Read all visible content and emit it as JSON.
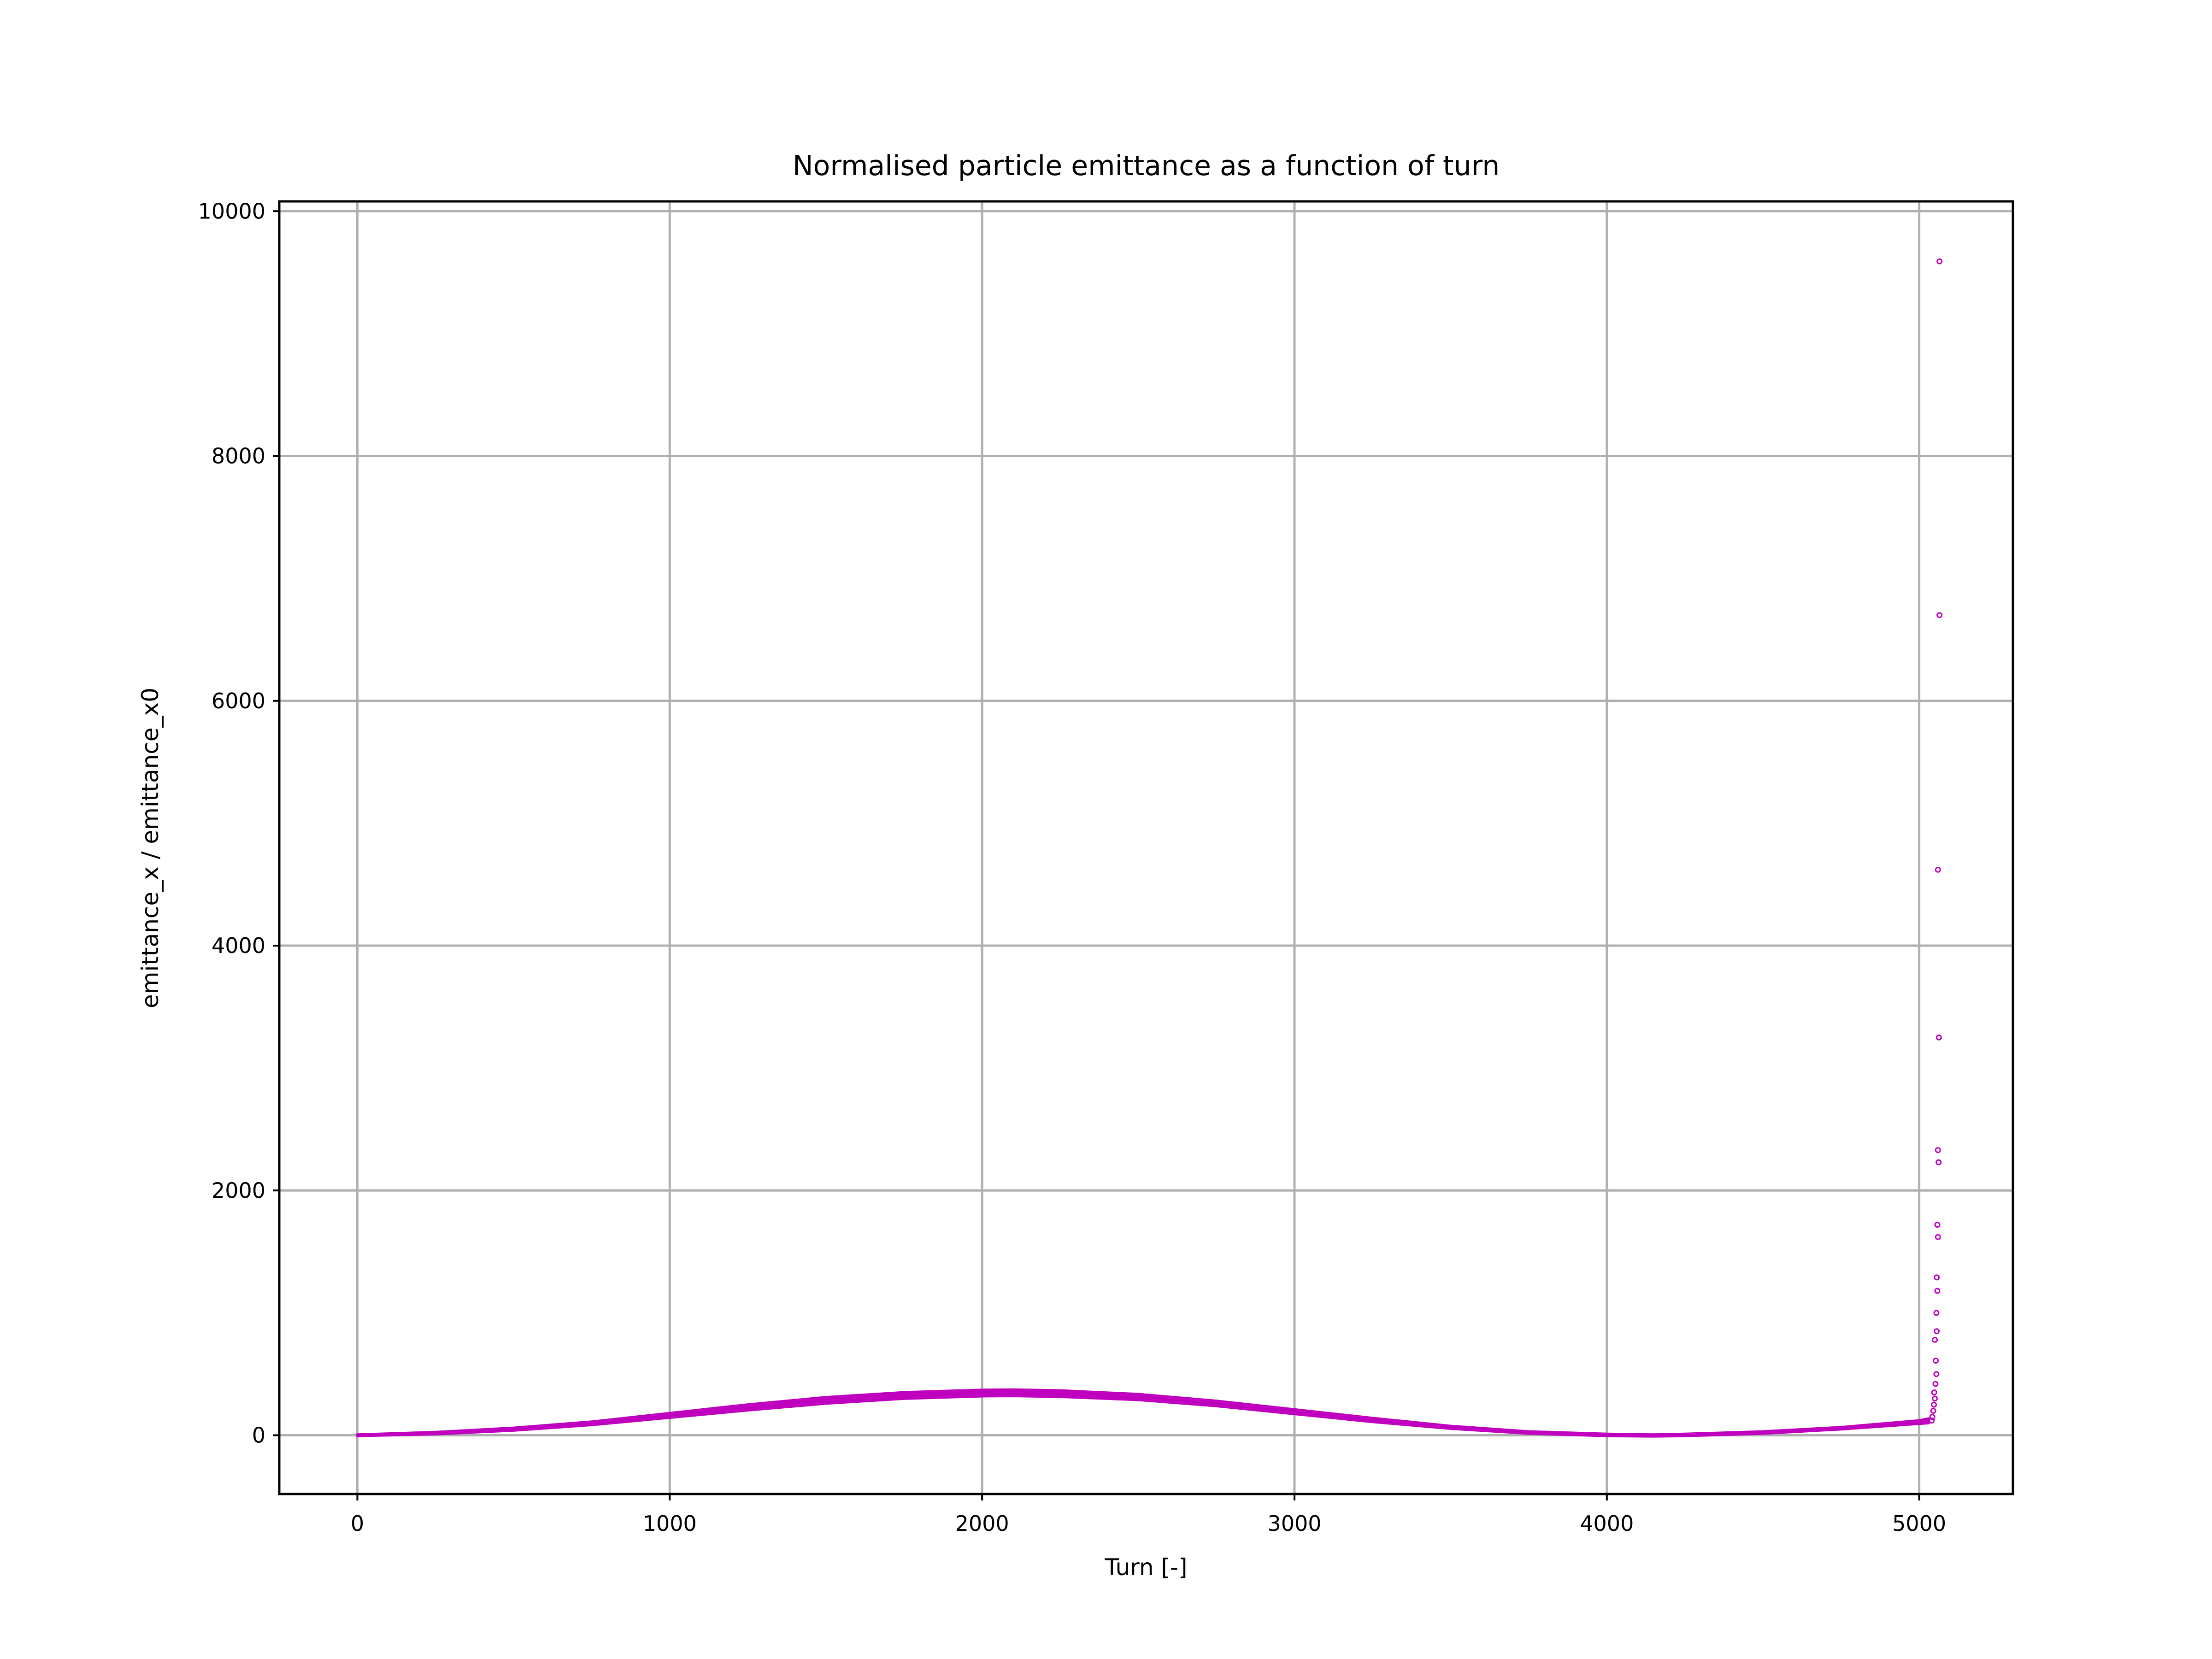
{
  "chart_data": {
    "type": "scatter",
    "title": "Normalised particle emittance as a function of turn",
    "xlabel": "Turn [-]",
    "ylabel": "emittance_x / emittance_x0",
    "xlim": [
      -250,
      5300
    ],
    "ylim": [
      -480,
      10080
    ],
    "xticks": [
      0,
      1000,
      2000,
      3000,
      4000,
      5000
    ],
    "yticks": [
      0,
      2000,
      4000,
      6000,
      8000,
      10000
    ],
    "grid": true,
    "legend": "none",
    "marker_color": "#bf00bf",
    "band": {
      "description_values": "upper and lower envelope of the dense point band (turn, emittance ratio)",
      "x": [
        0,
        250,
        500,
        750,
        1000,
        1250,
        1500,
        1750,
        2000,
        2100,
        2250,
        2500,
        2750,
        3000,
        3250,
        3500,
        3750,
        4000,
        4150,
        4250,
        4500,
        4750,
        5000,
        5030
      ],
      "upper": [
        5,
        25,
        60,
        110,
        180,
        250,
        310,
        350,
        370,
        372,
        365,
        335,
        280,
        210,
        140,
        75,
        30,
        10,
        5,
        10,
        30,
        65,
        120,
        135
      ],
      "lower": [
        -5,
        10,
        40,
        85,
        145,
        205,
        260,
        300,
        320,
        322,
        315,
        290,
        240,
        175,
        110,
        55,
        15,
        -5,
        -8,
        -5,
        15,
        50,
        95,
        100
      ]
    },
    "outliers": {
      "x": [
        5040,
        5042,
        5045,
        5047,
        5050,
        5048,
        5052,
        5055,
        5053,
        5050,
        5056,
        5055,
        5058,
        5056,
        5060,
        5058,
        5062,
        5060,
        5063,
        5060,
        5065
      ],
      "y": [
        120,
        150,
        200,
        250,
        300,
        350,
        420,
        500,
        610,
        780,
        850,
        1000,
        1180,
        1290,
        1620,
        1720,
        2230,
        2330,
        3250,
        4620,
        6700
      ]
    },
    "outlier_top": {
      "x": 5065,
      "y": 9590
    }
  }
}
